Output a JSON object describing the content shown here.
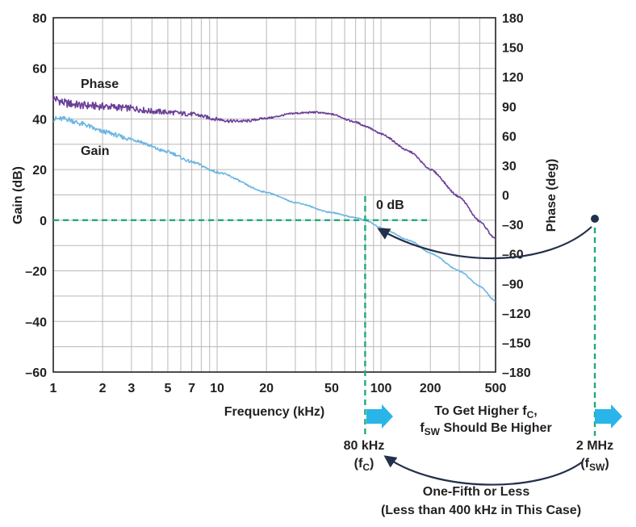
{
  "chart_data": {
    "type": "line",
    "title": "",
    "xlabel": "Frequency (kHz)",
    "ylabel": "Gain (dB)",
    "y2label": "Phase (deg)",
    "x_scale": "log",
    "xlim": [
      1,
      500
    ],
    "ylim": [
      -60,
      80
    ],
    "y2lim": [
      -180,
      180
    ],
    "grid": true,
    "x_ticks": [
      1,
      2,
      3,
      5,
      7,
      10,
      20,
      50,
      100,
      200,
      500
    ],
    "x_tick_labels": [
      "1",
      "2",
      "3",
      "5",
      "7",
      "10",
      "20",
      "50",
      "100",
      "200",
      "500"
    ],
    "y_ticks": [
      80,
      60,
      40,
      20,
      0,
      -20,
      -40,
      -60
    ],
    "y_tick_labels": [
      "80",
      "60",
      "40",
      "20",
      "0",
      "–20",
      "–40",
      "–60"
    ],
    "y2_ticks": [
      180,
      150,
      120,
      90,
      60,
      30,
      0,
      -30,
      -60,
      -90,
      -120,
      -150,
      -180
    ],
    "y2_tick_labels": [
      "180",
      "150",
      "120",
      "90",
      "60",
      "30",
      "0",
      "–30",
      "–60",
      "–90",
      "–120",
      "–150",
      "–180"
    ],
    "series": [
      {
        "name": "Phase",
        "axis": "right",
        "color": "#6b3f99",
        "x": [
          1,
          1.2,
          1.5,
          2,
          3,
          4,
          5,
          7,
          10,
          12,
          15,
          20,
          30,
          40,
          50,
          70,
          80,
          100,
          150,
          200,
          300,
          400,
          500
        ],
        "y": [
          98,
          93,
          91,
          90,
          88,
          85,
          84,
          82,
          77,
          75,
          75,
          78,
          83,
          84,
          82,
          74,
          70,
          62,
          44,
          26,
          -2,
          -27,
          -45
        ]
      },
      {
        "name": "Gain",
        "axis": "left",
        "color": "#6cb6e2",
        "x": [
          1,
          1.2,
          1.5,
          2,
          3,
          5,
          7,
          10,
          20,
          30,
          50,
          70,
          80,
          100,
          150,
          200,
          300,
          400,
          500
        ],
        "y": [
          40,
          40,
          38,
          35,
          32,
          27,
          23,
          19,
          11,
          7,
          3,
          1,
          0,
          -3,
          -8,
          -13,
          -20,
          -26,
          -32
        ]
      }
    ],
    "annotations": {
      "zero_db": "0 dB",
      "fc_value": "80 kHz",
      "fc_label": "(f",
      "fc_sub": "C",
      "fc_close": ")",
      "fsw_value": "2 MHz",
      "fsw_label": "(f",
      "fsw_sub": "SW",
      "fsw_close": ")",
      "higher_line1": "To Get Higher f",
      "higher_line1_sub": "C",
      "higher_line1_end": ",",
      "higher_line2": "f",
      "higher_line2_sub": "SW",
      "higher_line2_end": " Should Be Higher",
      "ratio_line1": "One-Fifth or Less",
      "ratio_line2": "(Less than 400 kHz in This Case)",
      "fc_khz": 80,
      "fsw_khz": 2000
    },
    "colors": {
      "phase": "#6b3f99",
      "gain": "#6cb6e2",
      "marker": "#1faa7d",
      "arrow": "#29b5e8",
      "curve_arrow": "#23304a",
      "grid": "#b8b8b8",
      "axis": "#231f20"
    }
  }
}
